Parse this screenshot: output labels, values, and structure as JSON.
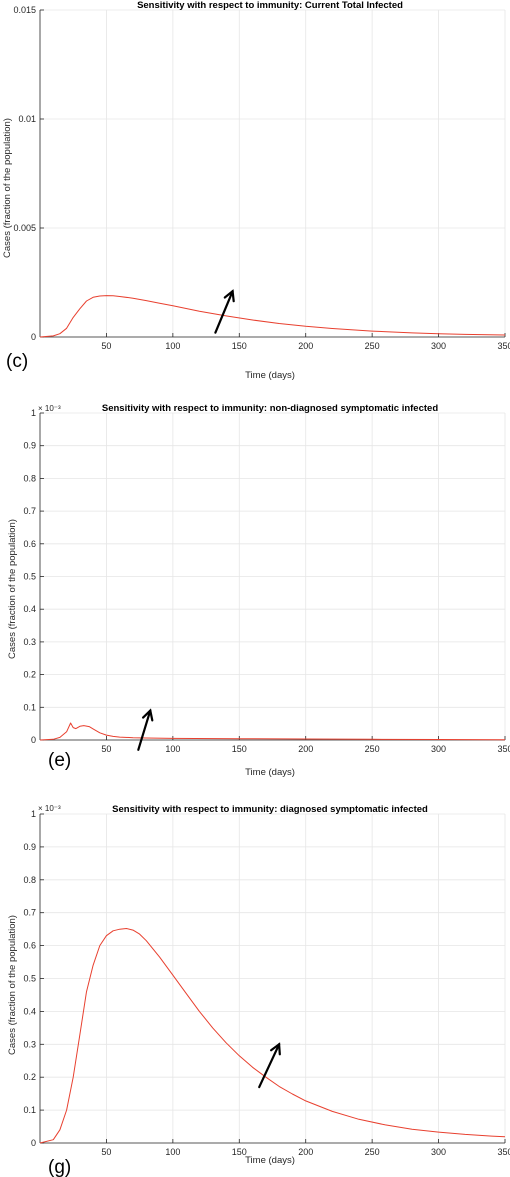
{
  "chart_data": [
    {
      "type": "line",
      "title": "Sensitivity with respect to immunity: Current Total Infected",
      "xlabel": "Time (days)",
      "ylabel": "Cases (fraction of the population)",
      "panel_label": "(c)",
      "y_exponent_label": "",
      "xlim": [
        0,
        350
      ],
      "ylim": [
        0,
        0.015
      ],
      "xticks": [
        50,
        100,
        150,
        200,
        250,
        300,
        350
      ],
      "yticks": [
        0,
        0.005,
        0.01,
        0.015
      ],
      "ytick_labels": [
        "0",
        "0.005",
        "0.01",
        "0.015"
      ],
      "grid": true,
      "line_color": "#e8402f",
      "series": [
        {
          "x": [
            0,
            10,
            15,
            20,
            25,
            30,
            35,
            40,
            45,
            50,
            55,
            60,
            70,
            80,
            90,
            100,
            120,
            140,
            160,
            180,
            200,
            220,
            250,
            280,
            300,
            320,
            350
          ],
          "values": [
            0,
            5e-05,
            0.00015,
            0.0004,
            0.0009,
            0.0013,
            0.00165,
            0.00182,
            0.00188,
            0.0019,
            0.00189,
            0.00186,
            0.00178,
            0.00167,
            0.00155,
            0.00143,
            0.00118,
            0.00097,
            0.00078,
            0.00062,
            0.00049,
            0.00039,
            0.00027,
            0.00019,
            0.00015,
            0.00012,
            9e-05
          ]
        }
      ],
      "arrow": {
        "from": [
          132,
          0.0002
        ],
        "to": [
          145,
          0.0021
        ]
      }
    },
    {
      "type": "line",
      "title": "Sensitivity with respect to immunity: non-diagnosed symptomatic infected",
      "xlabel": "Time (days)",
      "ylabel": "Cases (fraction of the population)",
      "panel_label": "(e)",
      "y_exponent_label": "× 10⁻³",
      "xlim": [
        0,
        350
      ],
      "ylim": [
        0,
        1
      ],
      "xticks": [
        50,
        100,
        150,
        200,
        250,
        300,
        350
      ],
      "yticks": [
        0,
        0.1,
        0.2,
        0.3,
        0.4,
        0.5,
        0.6,
        0.7,
        0.8,
        0.9,
        1
      ],
      "ytick_labels": [
        "0",
        "0.1",
        "0.2",
        "0.3",
        "0.4",
        "0.5",
        "0.6",
        "0.7",
        "0.8",
        "0.9",
        "1"
      ],
      "grid": true,
      "line_color": "#e8402f",
      "series": [
        {
          "x": [
            0,
            10,
            15,
            20,
            23,
            25,
            27,
            30,
            33,
            37,
            40,
            45,
            50,
            55,
            60,
            70,
            80,
            100,
            150,
            200,
            250,
            300,
            350
          ],
          "values": [
            0,
            0.002,
            0.008,
            0.025,
            0.052,
            0.038,
            0.035,
            0.042,
            0.044,
            0.041,
            0.034,
            0.022,
            0.015,
            0.011,
            0.009,
            0.007,
            0.006,
            0.005,
            0.004,
            0.003,
            0.002,
            0.0015,
            0.001
          ]
        }
      ],
      "arrow": {
        "from": [
          74,
          -0.03
        ],
        "to": [
          83,
          0.09
        ]
      }
    },
    {
      "type": "line",
      "title": "Sensitivity with respect to immunity: diagnosed symptomatic infected",
      "xlabel": "Time (days)",
      "ylabel": "Cases (fraction of the population)",
      "panel_label": "(g)",
      "y_exponent_label": "× 10⁻³",
      "xlim": [
        0,
        350
      ],
      "ylim": [
        0,
        1
      ],
      "xticks": [
        50,
        100,
        150,
        200,
        250,
        300,
        350
      ],
      "yticks": [
        0,
        0.1,
        0.2,
        0.3,
        0.4,
        0.5,
        0.6,
        0.7,
        0.8,
        0.9,
        1
      ],
      "ytick_labels": [
        "0",
        "0.1",
        "0.2",
        "0.3",
        "0.4",
        "0.5",
        "0.6",
        "0.7",
        "0.8",
        "0.9",
        "1"
      ],
      "grid": true,
      "line_color": "#e8402f",
      "series": [
        {
          "x": [
            0,
            10,
            15,
            20,
            25,
            30,
            35,
            40,
            45,
            50,
            55,
            60,
            65,
            70,
            75,
            80,
            90,
            100,
            110,
            120,
            130,
            140,
            150,
            160,
            170,
            180,
            190,
            200,
            220,
            240,
            260,
            280,
            300,
            320,
            340,
            350
          ],
          "values": [
            0,
            0.01,
            0.04,
            0.1,
            0.2,
            0.33,
            0.46,
            0.54,
            0.6,
            0.63,
            0.645,
            0.65,
            0.652,
            0.647,
            0.635,
            0.615,
            0.565,
            0.51,
            0.455,
            0.4,
            0.35,
            0.305,
            0.265,
            0.23,
            0.2,
            0.172,
            0.149,
            0.128,
            0.096,
            0.072,
            0.055,
            0.042,
            0.033,
            0.026,
            0.021,
            0.019
          ]
        }
      ],
      "arrow": {
        "from": [
          165,
          0.17
        ],
        "to": [
          180,
          0.3
        ]
      }
    }
  ]
}
